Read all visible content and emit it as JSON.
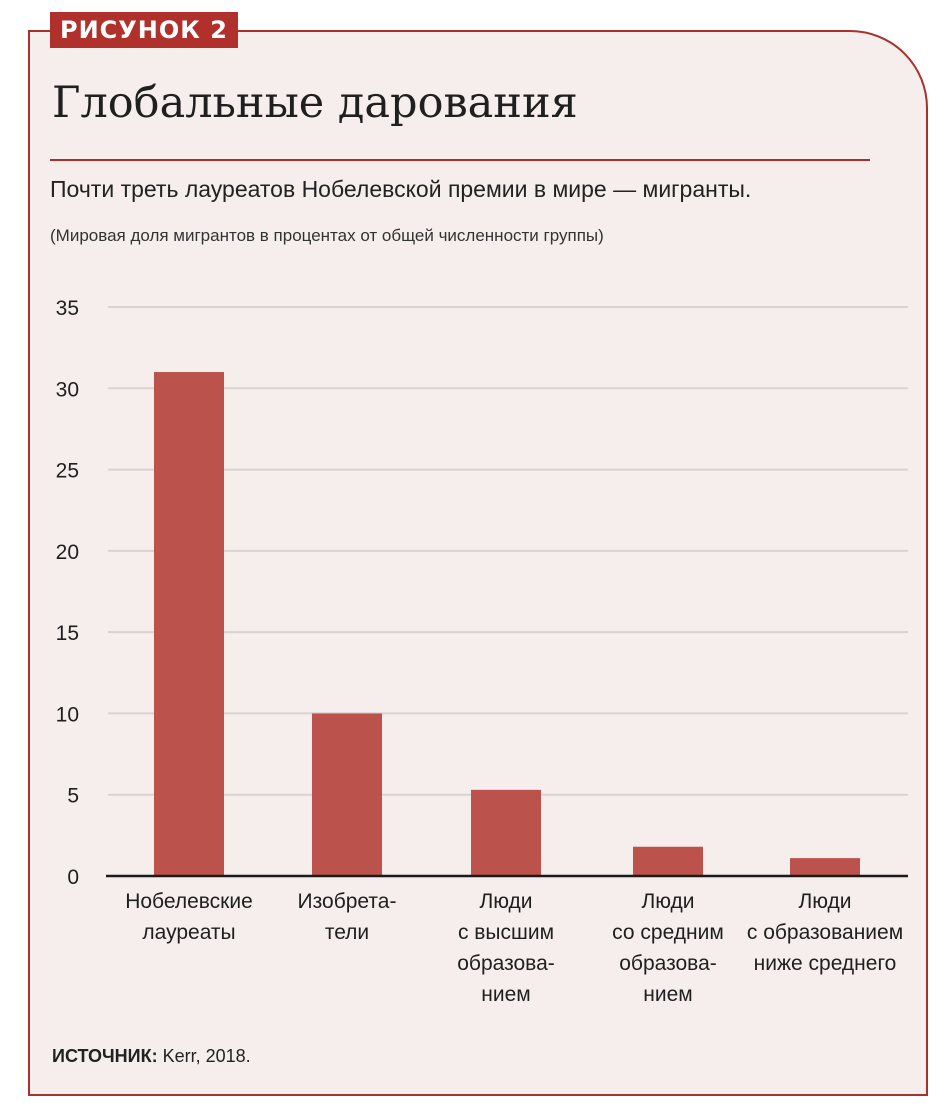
{
  "figure": {
    "label": "РИСУНОК 2",
    "title": "Глобальные дарования",
    "subtitle": "Почти треть лауреатов Нобелевской премии в мире — мигранты.",
    "note": "(Мировая доля мигрантов в процентах от общей численности группы)",
    "source_label": "ИСТОЧНИК:",
    "source_text": " Kerr, 2018."
  },
  "colors": {
    "bar": "#bb524b",
    "accent": "#a8312c",
    "panel_background": "#f5eeec",
    "grid": "#d8d3d1",
    "axis": "#1a1a1a"
  },
  "chart_data": {
    "type": "bar",
    "title": "Глобальные дарования",
    "categories": [
      [
        "Нобелевские",
        "лауреаты"
      ],
      [
        "Изобрета-",
        "тели"
      ],
      [
        "Люди",
        "с высшим",
        "образова-",
        "нием"
      ],
      [
        "Люди",
        "со средним",
        "образова-",
        "нием"
      ],
      [
        "Люди",
        "с образованием",
        "ниже среднего"
      ]
    ],
    "values": [
      31,
      10,
      5.3,
      1.8,
      1.1
    ],
    "ylim": [
      0,
      35
    ],
    "yticks": [
      0,
      5,
      10,
      15,
      20,
      25,
      30,
      35
    ],
    "grid": true,
    "xlabel": "",
    "ylabel": ""
  }
}
